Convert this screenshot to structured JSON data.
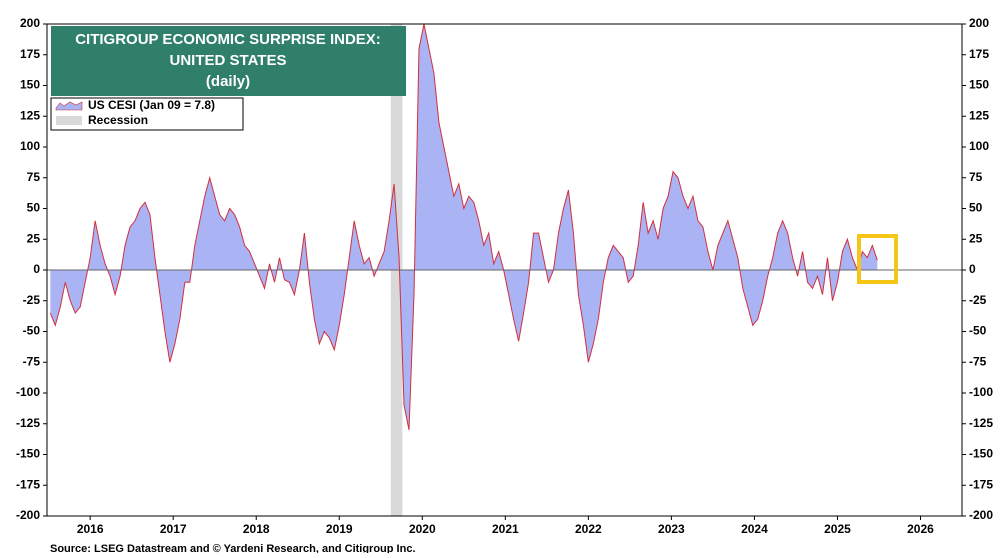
{
  "chart_data": {
    "type": "area",
    "title": [
      "CITIGROUP ECONOMIC SURPRISE INDEX:",
      "UNITED STATES",
      "(daily)"
    ],
    "source": "Source: LSEG Datastream and © Yardeni Research, and Citigroup Inc.",
    "recession": {
      "name": "Recession",
      "color": "#d9d9d9",
      "range": [
        2020.12,
        2020.26
      ]
    },
    "series": [
      {
        "name": "US CESI (Jan 09 = 7.8)",
        "color": "#aab4f5",
        "line_color": "#d22f3c",
        "x": [
          2016.02,
          2016.08,
          2016.14,
          2016.2,
          2016.26,
          2016.32,
          2016.38,
          2016.44,
          2016.5,
          2016.56,
          2016.62,
          2016.68,
          2016.74,
          2016.8,
          2016.86,
          2016.92,
          2016.98,
          2017.04,
          2017.1,
          2017.16,
          2017.22,
          2017.28,
          2017.34,
          2017.4,
          2017.46,
          2017.52,
          2017.58,
          2017.64,
          2017.7,
          2017.76,
          2017.82,
          2017.88,
          2017.94,
          2018.0,
          2018.06,
          2018.12,
          2018.18,
          2018.24,
          2018.3,
          2018.36,
          2018.42,
          2018.48,
          2018.54,
          2018.6,
          2018.66,
          2018.72,
          2018.78,
          2018.84,
          2018.9,
          2018.96,
          2019.02,
          2019.08,
          2019.14,
          2019.2,
          2019.26,
          2019.32,
          2019.38,
          2019.44,
          2019.5,
          2019.56,
          2019.62,
          2019.68,
          2019.74,
          2019.8,
          2019.86,
          2019.92,
          2019.98,
          2020.04,
          2020.1,
          2020.16,
          2020.22,
          2020.28,
          2020.34,
          2020.4,
          2020.46,
          2020.52,
          2020.58,
          2020.64,
          2020.7,
          2020.76,
          2020.82,
          2020.88,
          2020.94,
          2021.0,
          2021.06,
          2021.12,
          2021.18,
          2021.24,
          2021.3,
          2021.36,
          2021.42,
          2021.48,
          2021.54,
          2021.6,
          2021.66,
          2021.72,
          2021.78,
          2021.84,
          2021.9,
          2021.96,
          2022.02,
          2022.08,
          2022.14,
          2022.2,
          2022.26,
          2022.32,
          2022.38,
          2022.44,
          2022.5,
          2022.56,
          2022.62,
          2022.68,
          2022.74,
          2022.8,
          2022.86,
          2022.92,
          2022.98,
          2023.04,
          2023.1,
          2023.16,
          2023.22,
          2023.28,
          2023.34,
          2023.4,
          2023.46,
          2023.52,
          2023.58,
          2023.64,
          2023.7,
          2023.76,
          2023.82,
          2023.88,
          2023.94,
          2024.0,
          2024.06,
          2024.12,
          2024.18,
          2024.24,
          2024.3,
          2024.36,
          2024.42,
          2024.48,
          2024.54,
          2024.6,
          2024.66,
          2024.72,
          2024.78,
          2024.84,
          2024.9,
          2024.96,
          2025.02,
          2025.08,
          2025.14,
          2025.2,
          2025.26,
          2025.32,
          2025.38,
          2025.44,
          2025.5,
          2025.56,
          2025.62,
          2025.68,
          2025.74,
          2025.8,
          2025.86,
          2025.92,
          2025.98
        ],
        "values": [
          -35,
          -45,
          -30,
          -10,
          -25,
          -35,
          -30,
          -10,
          10,
          40,
          20,
          5,
          -5,
          -20,
          -5,
          20,
          35,
          40,
          50,
          55,
          45,
          10,
          -20,
          -50,
          -75,
          -60,
          -40,
          -10,
          -10,
          20,
          40,
          60,
          75,
          60,
          45,
          40,
          50,
          45,
          35,
          20,
          15,
          5,
          -5,
          -15,
          5,
          -10,
          10,
          -8,
          -10,
          -20,
          0,
          30,
          -10,
          -40,
          -60,
          -50,
          -55,
          -65,
          -45,
          -20,
          10,
          40,
          20,
          5,
          10,
          -5,
          5,
          15,
          40,
          70,
          10,
          -110,
          -130,
          -20,
          180,
          200,
          180,
          160,
          120,
          100,
          80,
          60,
          70,
          50,
          60,
          55,
          40,
          20,
          30,
          5,
          15,
          0,
          -20,
          -40,
          -58,
          -35,
          -10,
          30,
          30,
          10,
          -10,
          0,
          30,
          50,
          65,
          30,
          -20,
          -45,
          -75,
          -60,
          -40,
          -10,
          10,
          20,
          15,
          10,
          -10,
          -5,
          20,
          55,
          30,
          40,
          25,
          50,
          60,
          80,
          75,
          60,
          50,
          60,
          40,
          35,
          15,
          0,
          20,
          30,
          40,
          25,
          10,
          -15,
          -30,
          -45,
          -40,
          -25,
          -5,
          10,
          30,
          40,
          30,
          10,
          -5,
          15,
          -10,
          -15,
          -5,
          -20,
          10,
          -25,
          -10,
          15,
          25,
          10,
          0,
          15,
          10,
          20,
          8
        ]
      }
    ],
    "xlim": [
      2015.98,
      2027.0
    ],
    "xticks": [
      {
        "value": 2016.5,
        "label": "2016"
      },
      {
        "value": 2017.5,
        "label": "2017"
      },
      {
        "value": 2018.5,
        "label": "2018"
      },
      {
        "value": 2019.5,
        "label": "2019"
      },
      {
        "value": 2020.5,
        "label": "2020"
      },
      {
        "value": 2021.5,
        "label": "2021"
      },
      {
        "value": 2022.5,
        "label": "2022"
      },
      {
        "value": 2023.5,
        "label": "2023"
      },
      {
        "value": 2024.5,
        "label": "2024"
      },
      {
        "value": 2025.5,
        "label": "2025"
      },
      {
        "value": 2026.5,
        "label": "2026"
      }
    ],
    "ylim": [
      -200,
      200
    ],
    "yticks": [
      -200,
      -175,
      -150,
      -125,
      -100,
      -75,
      -50,
      -25,
      0,
      25,
      50,
      75,
      100,
      125,
      150,
      175,
      200
    ],
    "y2lim": [
      -200,
      200
    ],
    "y2ticks": [
      -200,
      -175,
      -150,
      -125,
      -100,
      -75,
      -50,
      -25,
      0,
      25,
      50,
      75,
      100,
      125,
      150,
      175,
      200
    ]
  }
}
